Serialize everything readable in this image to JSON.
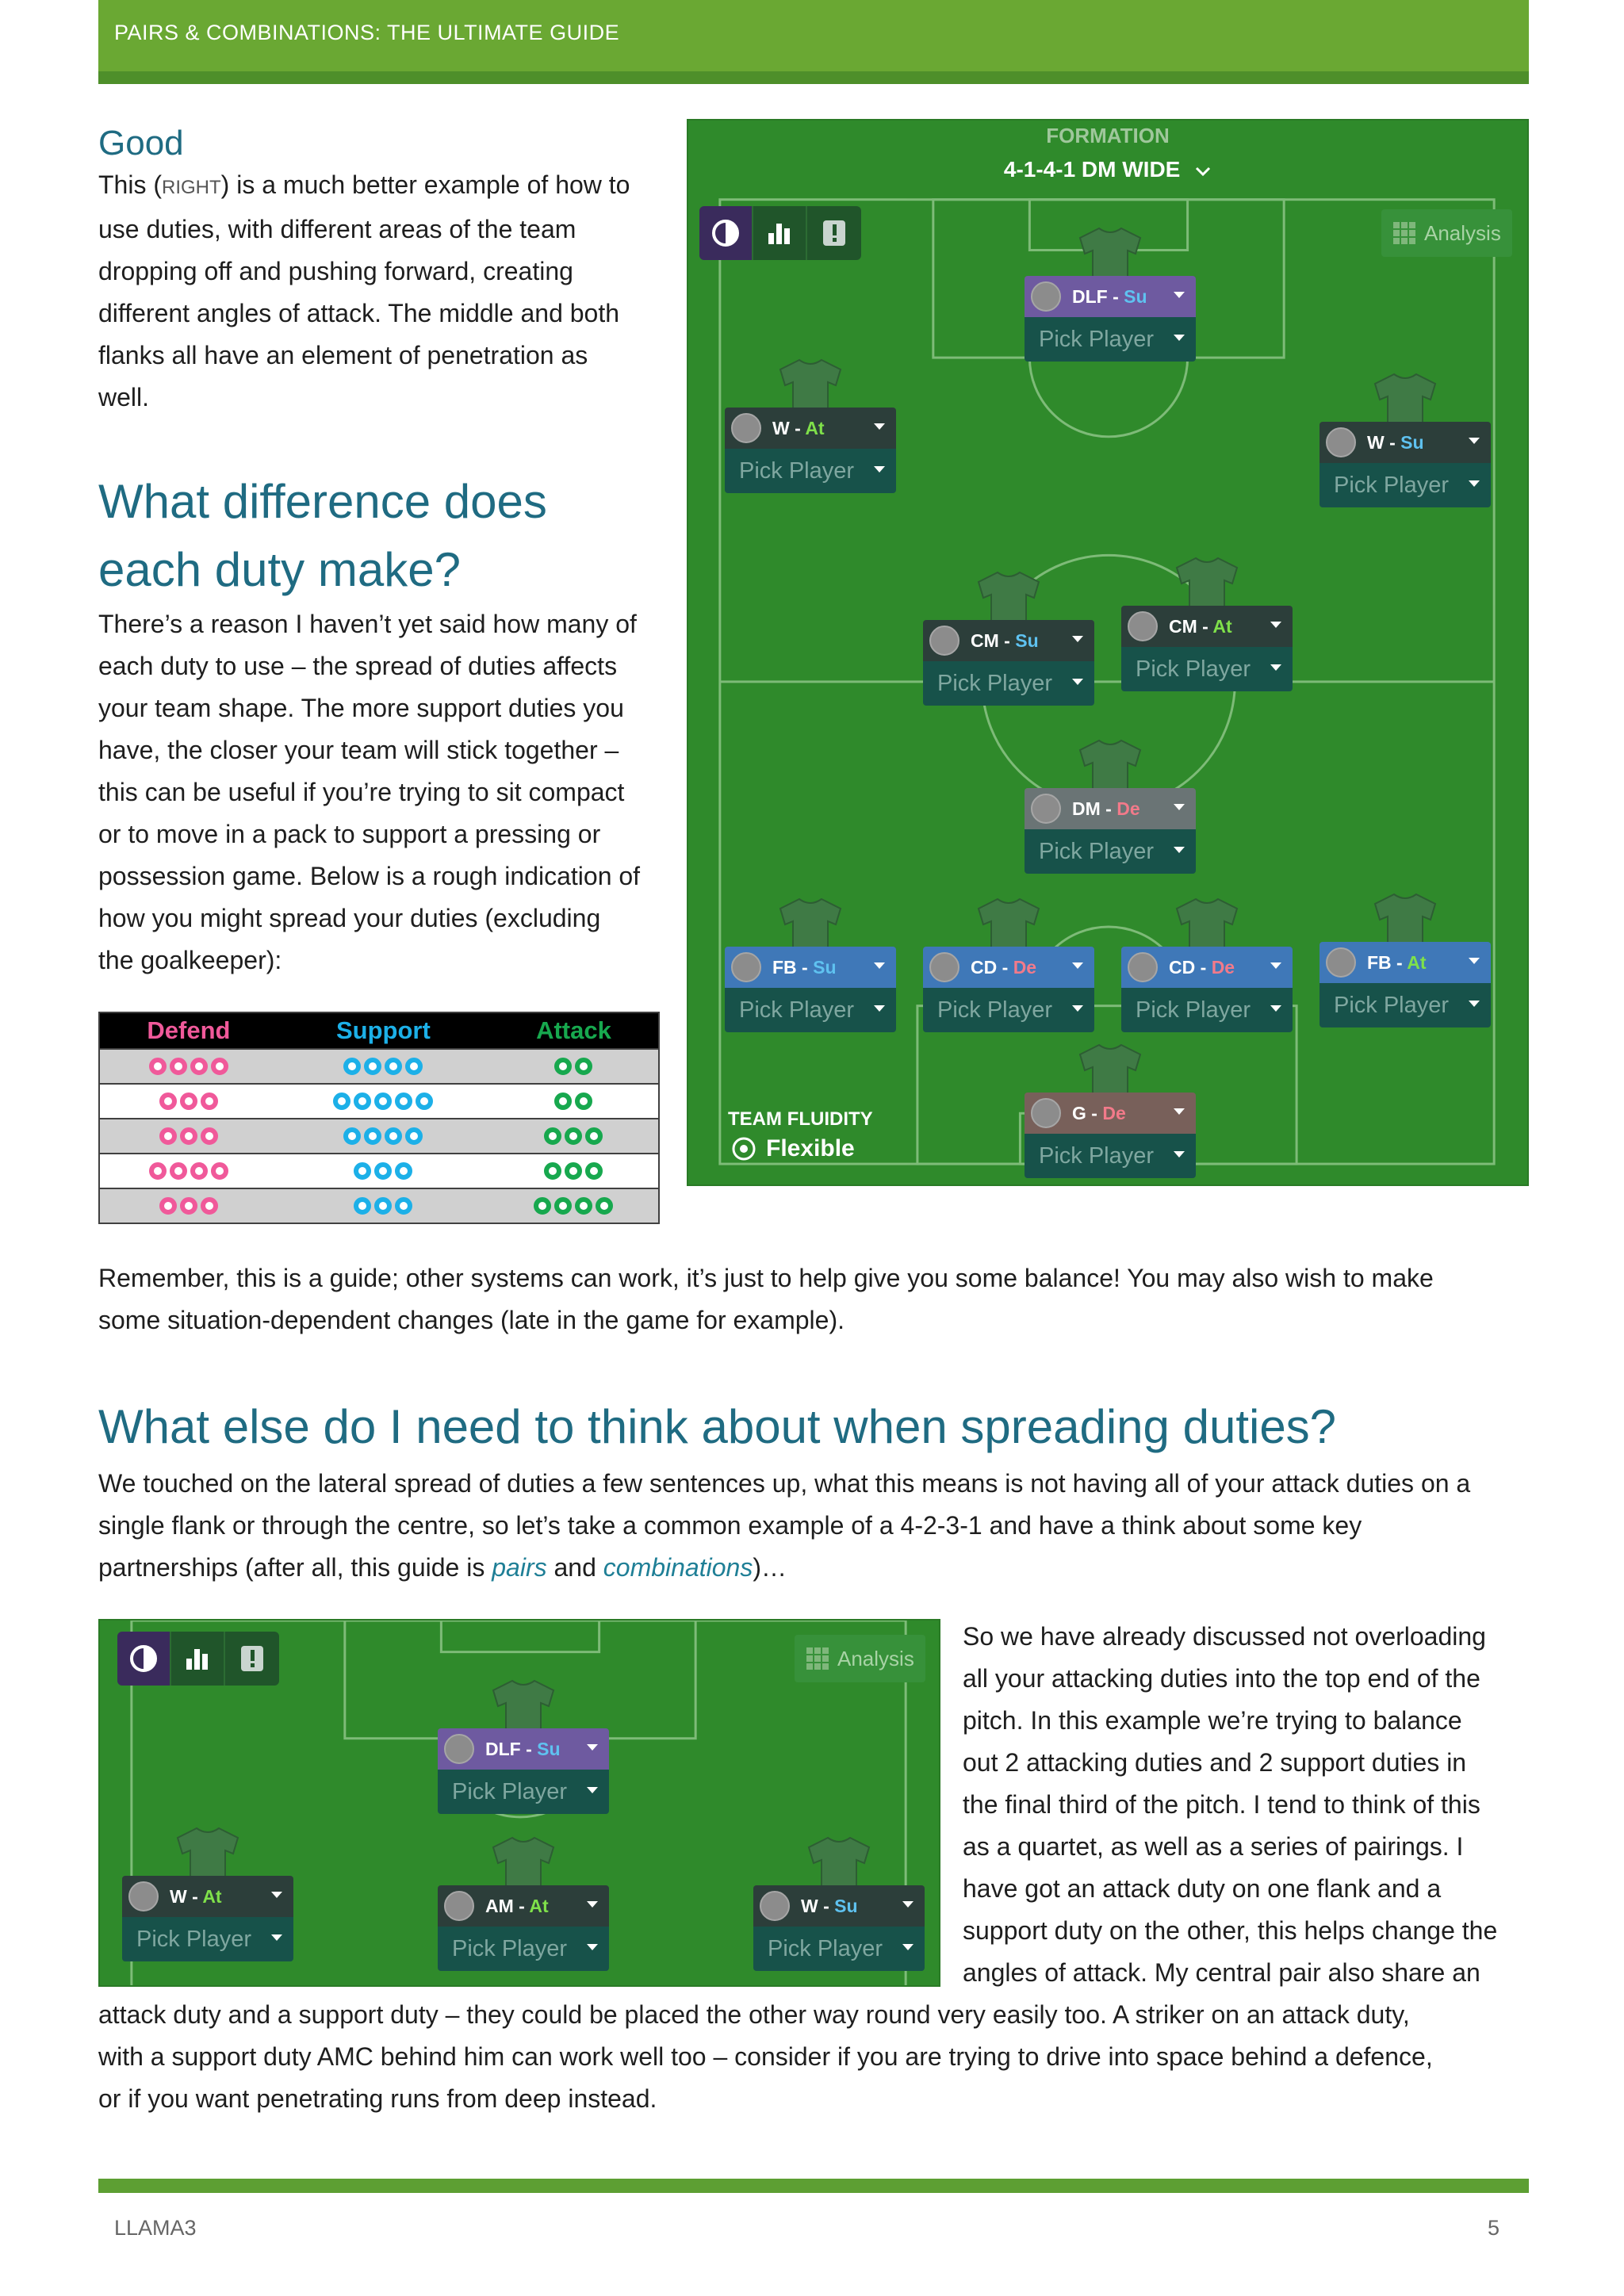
{
  "header": {
    "title": "PAIRS & COMBINATIONS: THE ULTIMATE GUIDE"
  },
  "good": {
    "heading": "Good",
    "lines": [
      [
        "This (",
        "RIGHT",
        ") is a much better example of how to"
      ],
      "use duties, with different areas of the team",
      "dropping off and pushing forward, creating",
      "different angles of attack. The middle and both",
      "flanks all have an element of penetration as",
      "well."
    ]
  },
  "difference": {
    "heading_lines": [
      "What difference does",
      "each duty make?"
    ],
    "lines": [
      "There’s a reason I haven’t yet said how many of",
      "each duty to use – the spread of duties affects",
      "your team shape. The more support duties you",
      "have, the closer your team will stick together –",
      "this can be useful if you’re trying to sit compact",
      "or to move in a pack to support a pressing or",
      "possession game. Below is a rough indication of",
      "how you might spread your duties (excluding",
      "the goalkeeper):"
    ]
  },
  "duty_table": {
    "headers": [
      "Defend",
      "Support",
      "Attack"
    ],
    "header_colors": [
      "#f0599a",
      "#1cb0e8",
      "#17a84e"
    ],
    "rows": [
      {
        "defend": 4,
        "support": 4,
        "attack": 2
      },
      {
        "defend": 3,
        "support": 5,
        "attack": 2
      },
      {
        "defend": 3,
        "support": 4,
        "attack": 3
      },
      {
        "defend": 4,
        "support": 3,
        "attack": 3
      },
      {
        "defend": 3,
        "support": 3,
        "attack": 4
      }
    ]
  },
  "formation_panel": {
    "label": "FORMATION",
    "name": "4-1-4-1 DM WIDE",
    "analysis": "Analysis",
    "fluidity_label": "TEAM FLUIDITY",
    "fluidity_value": "Flexible",
    "pick": "Pick Player",
    "players": [
      {
        "role": "DLF",
        "duty": "Su",
        "style": "purple"
      },
      {
        "role": "W",
        "duty": "At",
        "style": "dark"
      },
      {
        "role": "W",
        "duty": "Su",
        "style": "dark"
      },
      {
        "role": "CM",
        "duty": "Su",
        "style": "dark"
      },
      {
        "role": "CM",
        "duty": "At",
        "style": "dark"
      },
      {
        "role": "DM",
        "duty": "De",
        "style": "grey"
      },
      {
        "role": "FB",
        "duty": "Su",
        "style": "blue"
      },
      {
        "role": "CD",
        "duty": "De",
        "style": "blue"
      },
      {
        "role": "CD",
        "duty": "De",
        "style": "blue"
      },
      {
        "role": "FB",
        "duty": "At",
        "style": "blue"
      },
      {
        "role": "G",
        "duty": "De",
        "style": "brown"
      }
    ]
  },
  "remember": {
    "lines": [
      "Remember, this is a guide; other systems can work, it’s just to help give you some balance! You may also wish to make",
      "some situation-dependent changes (late in the game for example)."
    ]
  },
  "spreading": {
    "heading": "What else do I need to think about when spreading duties?",
    "lines": [
      "We touched on the lateral spread of duties a few sentences up, what this means is not having all of your attack duties on a",
      "single flank or through the centre, so let’s take a common example of a 4-2-3-1 and have a think about some key"
    ],
    "line3": {
      "before": "partnerships (after all, this guide is ",
      "link1": "pairs",
      "middle": " and ",
      "link2": "combinations",
      "after": ")…"
    }
  },
  "small_panel": {
    "analysis": "Analysis",
    "pick": "Pick Player",
    "players": [
      {
        "role": "DLF",
        "duty": "Su",
        "style": "purple"
      },
      {
        "role": "W",
        "duty": "At",
        "style": "dark"
      },
      {
        "role": "AM",
        "duty": "At",
        "style": "dark"
      },
      {
        "role": "W",
        "duty": "Su",
        "style": "dark"
      }
    ]
  },
  "quartet": {
    "side_lines": [
      "So we have already discussed not overloading",
      "all your attacking duties into the top end of the",
      "pitch. In this example we’re trying to balance",
      "out 2 attacking duties and 2 support duties in",
      "the final third of the pitch. I tend to think of this",
      "as a quartet, as well as a series of pairings. I",
      "have got an attack duty on one flank and a",
      "support duty on the other, this helps change the",
      "angles of attack. My central pair also share an"
    ],
    "full_lines": [
      "attack duty and a support duty – they could be placed the other way round very easily too. A striker on an attack duty,",
      "with a support duty AMC behind him can work well too – consider if you are trying to drive into space behind a defence,",
      "or if you want penetrating runs from deep instead."
    ]
  },
  "footer": {
    "left": "LLAMA3",
    "page": "5"
  },
  "colors": {
    "heading": "#1f6b82",
    "header_bar": "#6aa833",
    "pitch": "#2f8a2b",
    "attack": "#7fe04a",
    "support": "#5fc2f0",
    "defend": "#f27a8a"
  }
}
